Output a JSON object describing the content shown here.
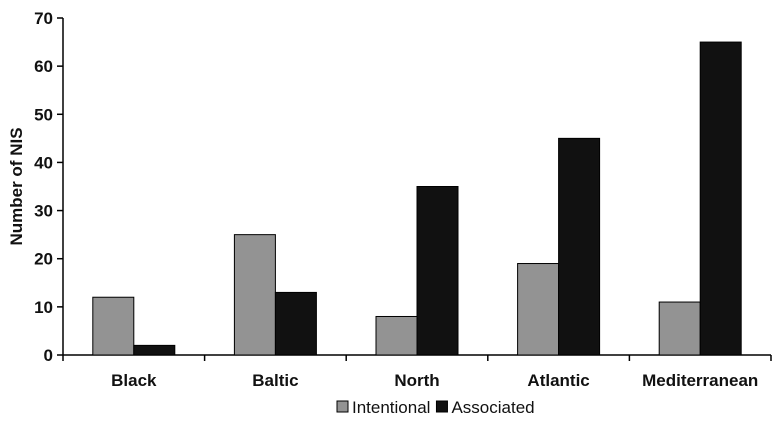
{
  "chart_data": {
    "type": "bar",
    "title": "",
    "xlabel": "",
    "ylabel": "Number of NIS",
    "ylim": [
      0,
      70
    ],
    "yticks": [
      0,
      10,
      20,
      30,
      40,
      50,
      60,
      70
    ],
    "grid": false,
    "legend_position": "bottom-center",
    "categories": [
      "Black",
      "Baltic",
      "North",
      "Atlantic",
      "Mediterranean"
    ],
    "series": [
      {
        "name": "Intentional",
        "color": "#939393",
        "values": [
          12,
          25,
          8,
          19,
          11
        ]
      },
      {
        "name": "Associated",
        "color": "#111111",
        "values": [
          2,
          13,
          35,
          45,
          65
        ]
      }
    ]
  }
}
